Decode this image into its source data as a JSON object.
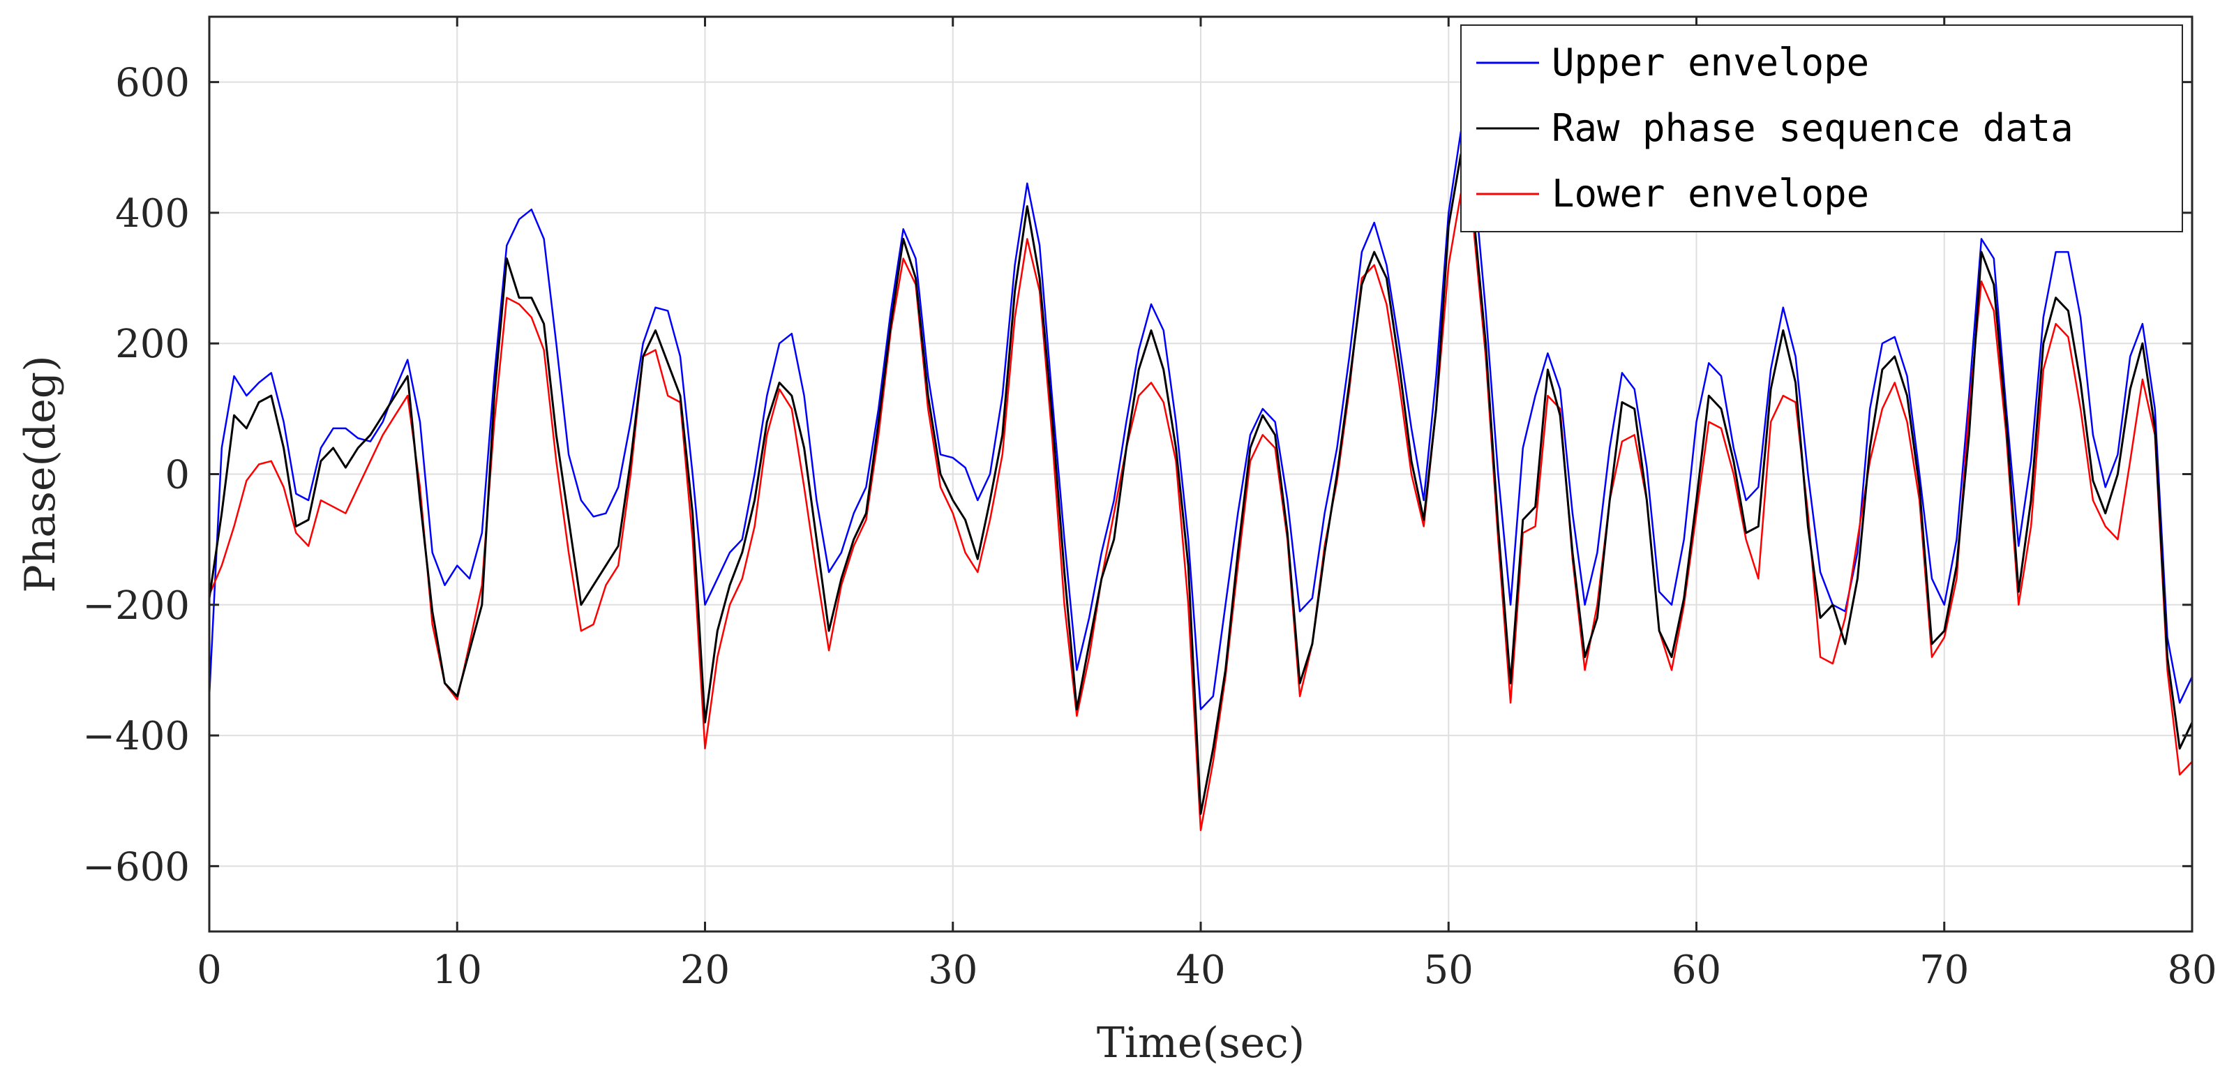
{
  "chart_data": {
    "type": "line",
    "title": "",
    "xlabel": "Time(sec)",
    "ylabel": "Phase(deg)",
    "xlim": [
      0,
      80
    ],
    "ylim": [
      -700,
      700
    ],
    "xticks": [
      0,
      10,
      20,
      30,
      40,
      50,
      60,
      70,
      80
    ],
    "yticks": [
      -600,
      -400,
      -200,
      0,
      200,
      400,
      600
    ],
    "xtick_labels": [
      "0",
      "10",
      "20",
      "30",
      "40",
      "50",
      "60",
      "70",
      "80"
    ],
    "ytick_labels": [
      "−600",
      "−400",
      "−200",
      "0",
      "200",
      "400",
      "600"
    ],
    "grid": true,
    "legend_position": "top-right",
    "series": [
      {
        "name": "Upper envelope",
        "color": "#0000ff",
        "x": [
          0,
          0.5,
          1,
          1.5,
          2,
          2.5,
          3,
          3.5,
          4,
          4.5,
          5,
          5.5,
          6,
          6.5,
          7,
          7.5,
          8,
          8.5,
          9,
          9.5,
          10,
          10.5,
          11,
          11.5,
          12,
          12.5,
          13,
          13.5,
          14,
          14.5,
          15,
          15.5,
          16,
          16.5,
          17,
          17.5,
          18,
          18.5,
          19,
          19.5,
          20,
          20.5,
          21,
          21.5,
          22,
          22.5,
          23,
          23.5,
          24,
          24.5,
          25,
          25.5,
          26,
          26.5,
          27,
          27.5,
          28,
          28.5,
          29,
          29.5,
          30,
          30.5,
          31,
          31.5,
          32,
          32.5,
          33,
          33.5,
          34,
          34.5,
          35,
          35.5,
          36,
          36.5,
          37,
          37.5,
          38,
          38.5,
          39,
          39.5,
          40,
          40.5,
          41,
          41.5,
          42,
          42.5,
          43,
          43.5,
          44,
          44.5,
          45,
          45.5,
          46,
          46.5,
          47,
          47.5,
          48,
          48.5,
          49,
          49.5,
          50,
          50.5,
          51,
          51.5,
          52,
          52.5,
          53,
          53.5,
          54,
          54.5,
          55,
          55.5,
          56,
          56.5,
          57,
          57.5,
          58,
          58.5,
          59,
          59.5,
          60,
          60.5,
          61,
          61.5,
          62,
          62.5,
          63,
          63.5,
          64,
          64.5,
          65,
          65.5,
          66,
          66.5,
          67,
          67.5,
          68,
          68.5,
          69,
          69.5,
          70,
          70.5,
          71,
          71.5,
          72,
          72.5,
          73,
          73.5,
          74,
          74.5,
          75,
          75.5,
          76,
          76.5,
          77,
          77.5,
          78,
          78.5,
          79,
          79.5,
          80
        ],
        "y": [
          -340,
          40,
          150,
          120,
          140,
          155,
          80,
          -30,
          -40,
          40,
          70,
          70,
          55,
          50,
          80,
          130,
          175,
          80,
          -120,
          -170,
          -140,
          -160,
          -90,
          150,
          350,
          390,
          405,
          360,
          200,
          30,
          -40,
          -65,
          -60,
          -20,
          80,
          200,
          255,
          250,
          180,
          0,
          -200,
          -160,
          -120,
          -100,
          0,
          120,
          200,
          215,
          120,
          -40,
          -150,
          -120,
          -60,
          -20,
          100,
          250,
          375,
          330,
          150,
          30,
          25,
          10,
          -40,
          0,
          120,
          320,
          445,
          350,
          120,
          -100,
          -300,
          -220,
          -120,
          -40,
          80,
          190,
          260,
          220,
          80,
          -100,
          -360,
          -340,
          -200,
          -60,
          60,
          100,
          80,
          -40,
          -210,
          -190,
          -60,
          40,
          180,
          340,
          385,
          320,
          200,
          70,
          -40,
          150,
          400,
          525,
          460,
          250,
          0,
          -200,
          40,
          120,
          185,
          130,
          -60,
          -200,
          -120,
          40,
          155,
          130,
          10,
          -180,
          -200,
          -100,
          80,
          170,
          150,
          40,
          -40,
          -20,
          160,
          255,
          180,
          0,
          -150,
          -200,
          -210,
          -120,
          100,
          200,
          210,
          150,
          0,
          -160,
          -200,
          -100,
          120,
          360,
          330,
          100,
          -110,
          20,
          240,
          340,
          340,
          240,
          60,
          -20,
          30,
          180,
          230,
          100,
          -250,
          -350,
          -310
        ]
      },
      {
        "name": "Raw phase sequence data",
        "color": "#000000",
        "x": [
          0,
          0.5,
          1,
          1.5,
          2,
          2.5,
          3,
          3.5,
          4,
          4.5,
          5,
          5.5,
          6,
          6.5,
          7,
          7.5,
          8,
          8.5,
          9,
          9.5,
          10,
          10.5,
          11,
          11.5,
          12,
          12.5,
          13,
          13.5,
          14,
          14.5,
          15,
          15.5,
          16,
          16.5,
          17,
          17.5,
          18,
          18.5,
          19,
          19.5,
          20,
          20.5,
          21,
          21.5,
          22,
          22.5,
          23,
          23.5,
          24,
          24.5,
          25,
          25.5,
          26,
          26.5,
          27,
          27.5,
          28,
          28.5,
          29,
          29.5,
          30,
          30.5,
          31,
          31.5,
          32,
          32.5,
          33,
          33.5,
          34,
          34.5,
          35,
          35.5,
          36,
          36.5,
          37,
          37.5,
          38,
          38.5,
          39,
          39.5,
          40,
          40.5,
          41,
          41.5,
          42,
          42.5,
          43,
          43.5,
          44,
          44.5,
          45,
          45.5,
          46,
          46.5,
          47,
          47.5,
          48,
          48.5,
          49,
          49.5,
          50,
          50.5,
          51,
          51.5,
          52,
          52.5,
          53,
          53.5,
          54,
          54.5,
          55,
          55.5,
          56,
          56.5,
          57,
          57.5,
          58,
          58.5,
          59,
          59.5,
          60,
          60.5,
          61,
          61.5,
          62,
          62.5,
          63,
          63.5,
          64,
          64.5,
          65,
          65.5,
          66,
          66.5,
          67,
          67.5,
          68,
          68.5,
          69,
          69.5,
          70,
          70.5,
          71,
          71.5,
          72,
          72.5,
          73,
          73.5,
          74,
          74.5,
          75,
          75.5,
          76,
          76.5,
          77,
          77.5,
          78,
          78.5,
          79,
          79.5,
          80
        ],
        "y": [
          -190,
          -60,
          90,
          70,
          110,
          120,
          40,
          -80,
          -70,
          20,
          40,
          10,
          40,
          60,
          90,
          120,
          150,
          -40,
          -210,
          -320,
          -340,
          -270,
          -200,
          120,
          330,
          270,
          270,
          230,
          60,
          -70,
          -200,
          -170,
          -140,
          -110,
          20,
          180,
          220,
          170,
          120,
          -60,
          -380,
          -240,
          -170,
          -120,
          -40,
          80,
          140,
          120,
          40,
          -100,
          -240,
          -160,
          -100,
          -60,
          80,
          230,
          360,
          300,
          120,
          0,
          -40,
          -70,
          -130,
          -40,
          60,
          280,
          410,
          300,
          90,
          -150,
          -360,
          -260,
          -160,
          -100,
          40,
          160,
          220,
          160,
          40,
          -140,
          -520,
          -420,
          -300,
          -120,
          40,
          90,
          60,
          -90,
          -320,
          -260,
          -120,
          0,
          140,
          290,
          340,
          300,
          170,
          20,
          -70,
          100,
          380,
          490,
          400,
          200,
          -80,
          -320,
          -70,
          -50,
          160,
          90,
          -120,
          -280,
          -220,
          -40,
          110,
          100,
          -40,
          -240,
          -280,
          -190,
          -40,
          120,
          100,
          20,
          -90,
          -80,
          130,
          220,
          140,
          -80,
          -220,
          -200,
          -260,
          -160,
          40,
          160,
          180,
          120,
          -20,
          -260,
          -240,
          -140,
          60,
          340,
          290,
          80,
          -180,
          -40,
          200,
          270,
          250,
          140,
          -10,
          -60,
          0,
          130,
          200,
          70,
          -280,
          -420,
          -380
        ]
      },
      {
        "name": "Lower envelope",
        "color": "#ff0000",
        "x": [
          0,
          0.5,
          1,
          1.5,
          2,
          2.5,
          3,
          3.5,
          4,
          4.5,
          5,
          5.5,
          6,
          6.5,
          7,
          7.5,
          8,
          8.5,
          9,
          9.5,
          10,
          10.5,
          11,
          11.5,
          12,
          12.5,
          13,
          13.5,
          14,
          14.5,
          15,
          15.5,
          16,
          16.5,
          17,
          17.5,
          18,
          18.5,
          19,
          19.5,
          20,
          20.5,
          21,
          21.5,
          22,
          22.5,
          23,
          23.5,
          24,
          24.5,
          25,
          25.5,
          26,
          26.5,
          27,
          27.5,
          28,
          28.5,
          29,
          29.5,
          30,
          30.5,
          31,
          31.5,
          32,
          32.5,
          33,
          33.5,
          34,
          34.5,
          35,
          35.5,
          36,
          36.5,
          37,
          37.5,
          38,
          38.5,
          39,
          39.5,
          40,
          40.5,
          41,
          41.5,
          42,
          42.5,
          43,
          43.5,
          44,
          44.5,
          45,
          45.5,
          46,
          46.5,
          47,
          47.5,
          48,
          48.5,
          49,
          49.5,
          50,
          50.5,
          51,
          51.5,
          52,
          52.5,
          53,
          53.5,
          54,
          54.5,
          55,
          55.5,
          56,
          56.5,
          57,
          57.5,
          58,
          58.5,
          59,
          59.5,
          60,
          60.5,
          61,
          61.5,
          62,
          62.5,
          63,
          63.5,
          64,
          64.5,
          65,
          65.5,
          66,
          66.5,
          67,
          67.5,
          68,
          68.5,
          69,
          69.5,
          70,
          70.5,
          71,
          71.5,
          72,
          72.5,
          73,
          73.5,
          74,
          74.5,
          75,
          75.5,
          76,
          76.5,
          77,
          77.5,
          78,
          78.5,
          79,
          79.5,
          80
        ],
        "y": [
          -185,
          -140,
          -80,
          -10,
          15,
          20,
          -20,
          -90,
          -110,
          -40,
          -50,
          -60,
          -20,
          20,
          60,
          90,
          120,
          -20,
          -230,
          -320,
          -345,
          -260,
          -170,
          80,
          270,
          260,
          240,
          190,
          20,
          -120,
          -240,
          -230,
          -170,
          -140,
          0,
          180,
          190,
          120,
          110,
          -100,
          -420,
          -280,
          -200,
          -160,
          -80,
          60,
          130,
          100,
          -20,
          -150,
          -270,
          -170,
          -110,
          -70,
          60,
          220,
          330,
          290,
          100,
          -20,
          -60,
          -120,
          -150,
          -70,
          30,
          240,
          360,
          280,
          60,
          -200,
          -370,
          -280,
          -160,
          -60,
          40,
          120,
          140,
          110,
          20,
          -200,
          -545,
          -440,
          -310,
          -140,
          20,
          60,
          40,
          -100,
          -340,
          -260,
          -110,
          -10,
          130,
          300,
          320,
          260,
          140,
          0,
          -80,
          100,
          320,
          430,
          380,
          180,
          -100,
          -350,
          -90,
          -80,
          120,
          100,
          -130,
          -300,
          -200,
          -40,
          50,
          60,
          -40,
          -240,
          -300,
          -200,
          -60,
          80,
          70,
          0,
          -100,
          -160,
          80,
          120,
          110,
          -60,
          -280,
          -290,
          -220,
          -100,
          20,
          100,
          140,
          80,
          -40,
          -280,
          -250,
          -160,
          100,
          295,
          250,
          60,
          -200,
          -80,
          160,
          230,
          210,
          100,
          -40,
          -80,
          -100,
          20,
          145,
          60,
          -300,
          -460,
          -440
        ]
      }
    ]
  }
}
